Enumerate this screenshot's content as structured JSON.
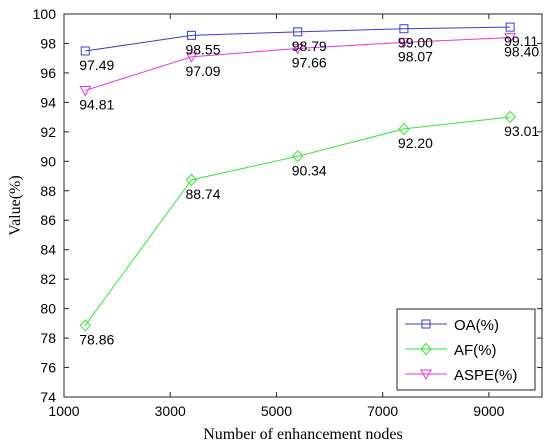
{
  "chart_data": {
    "type": "line",
    "xlabel": "Number of enhancement nodes",
    "ylabel": "Value(%)",
    "xlim": [
      1000,
      10000
    ],
    "ylim": [
      74,
      100
    ],
    "xticks": [
      1000,
      3000,
      5000,
      7000,
      9000
    ],
    "yticks": [
      74,
      76,
      78,
      80,
      82,
      84,
      86,
      88,
      90,
      92,
      94,
      96,
      98,
      100
    ],
    "x": [
      1400,
      3400,
      5400,
      7400,
      9400
    ],
    "grid": false,
    "legend_position": "bottom-right",
    "series": [
      {
        "name": "OA(%)",
        "color": "#3b3bd4",
        "marker": "square",
        "values": [
          97.49,
          98.55,
          98.79,
          99.0,
          99.11
        ],
        "labels": [
          "97.49",
          "98.55",
          "98.79",
          "99.00",
          "99.11"
        ]
      },
      {
        "name": "AF(%)",
        "color": "#33e633",
        "marker": "diamond",
        "values": [
          78.86,
          88.74,
          90.34,
          92.2,
          93.01
        ],
        "labels": [
          "78.86",
          "88.74",
          "90.34",
          "92.20",
          "93.01"
        ]
      },
      {
        "name": "ASPE(%)",
        "color": "#e633e6",
        "marker": "triangle-down",
        "values": [
          94.81,
          97.09,
          97.66,
          98.07,
          98.4
        ],
        "labels": [
          "94.81",
          "97.09",
          "97.66",
          "98.07",
          "98.40"
        ]
      }
    ]
  }
}
